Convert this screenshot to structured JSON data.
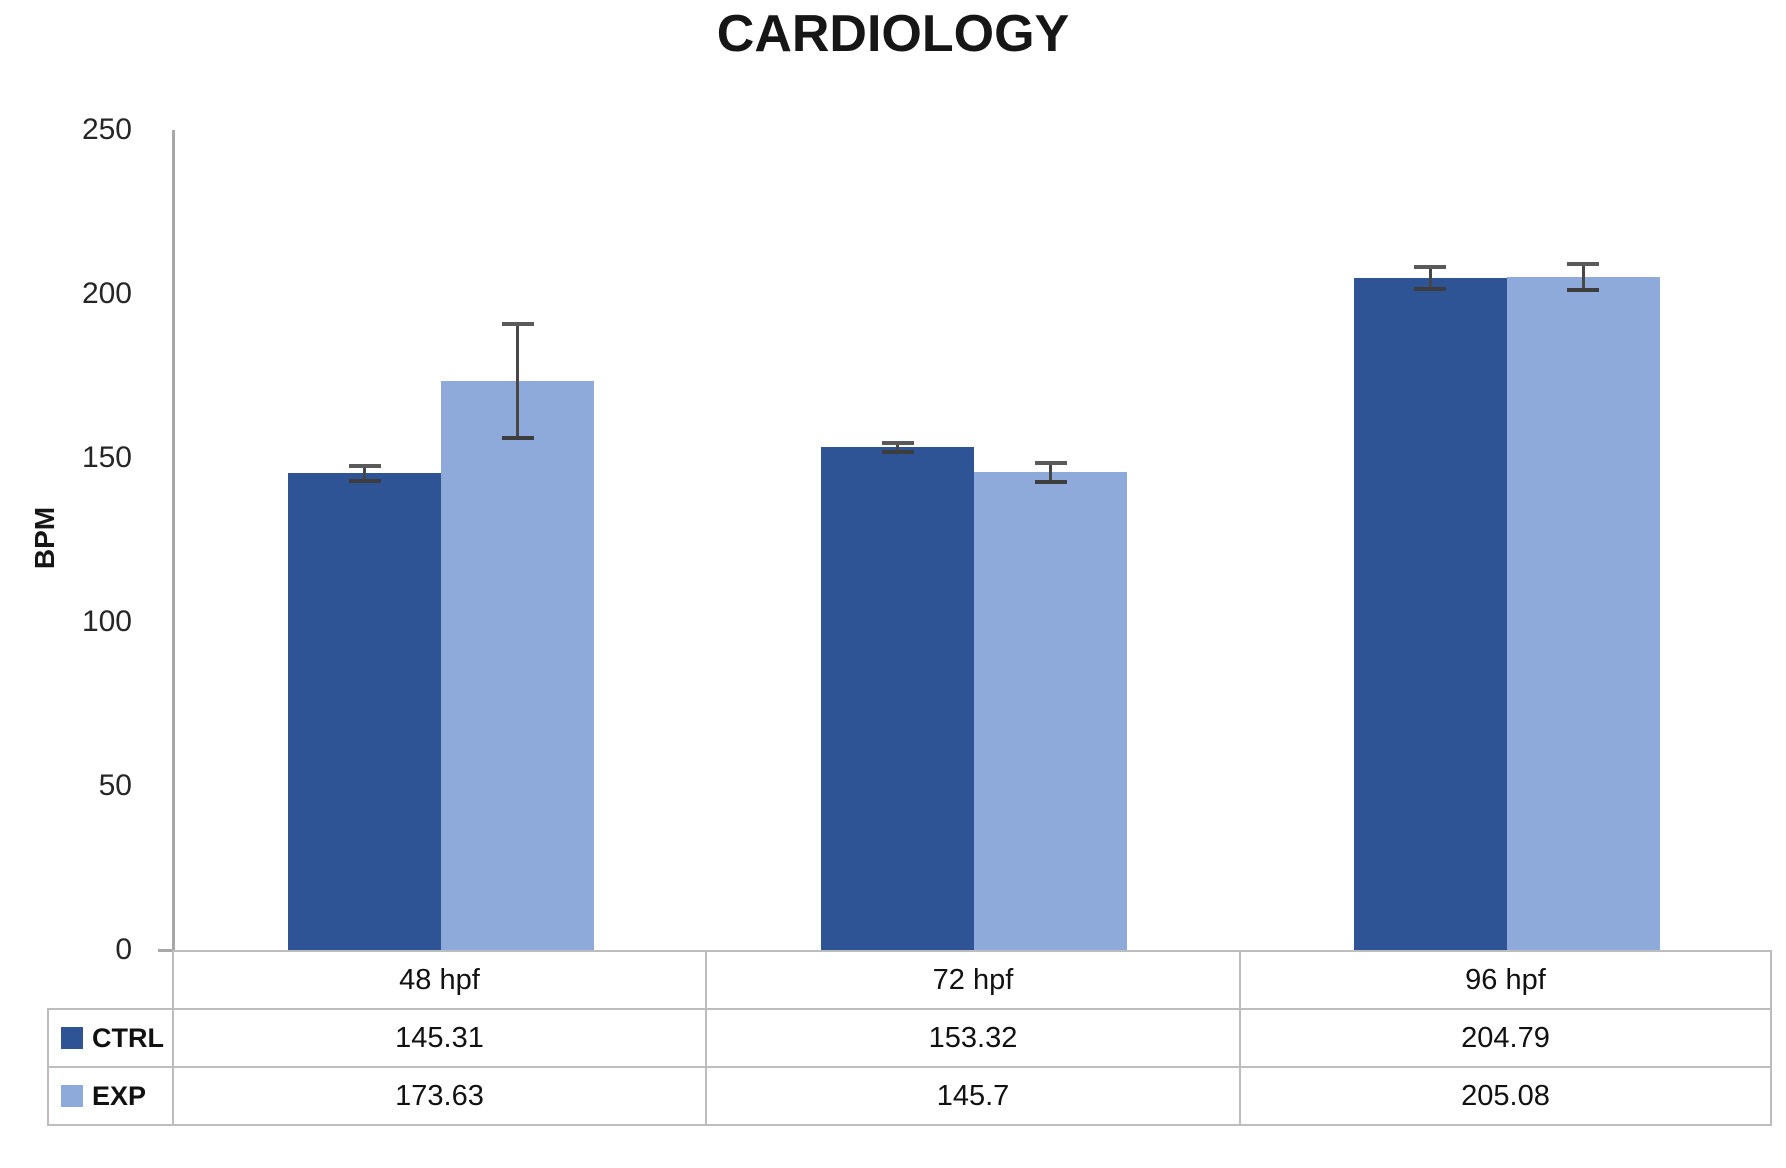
{
  "title": "CARDIOLOGY",
  "chart_data": {
    "type": "bar",
    "title": "CARDIOLOGY",
    "xlabel": "",
    "ylabel": "BPM",
    "ylim": [
      0,
      250
    ],
    "yticks": [
      0,
      50,
      100,
      150,
      200,
      250
    ],
    "grid": false,
    "legend_position": "table-left",
    "categories": [
      "48 hpf",
      "72 hpf",
      "96 hpf"
    ],
    "series": [
      {
        "name": "CTRL",
        "color": "#2F5496",
        "values": [
          145.31,
          153.32,
          204.79
        ],
        "errors": [
          3.0,
          2.0,
          4.0
        ]
      },
      {
        "name": "EXP",
        "color": "#8EAADB",
        "values": [
          173.63,
          145.7,
          205.08
        ],
        "errors": [
          18.0,
          3.5,
          4.6
        ]
      }
    ]
  },
  "table": {
    "categories": [
      "48 hpf",
      "72 hpf",
      "96 hpf"
    ],
    "rows": [
      {
        "label": "CTRL",
        "values": [
          "145.31",
          "153.32",
          "204.79"
        ]
      },
      {
        "label": "EXP",
        "values": [
          "173.63",
          "145.7",
          "205.08"
        ]
      }
    ]
  }
}
